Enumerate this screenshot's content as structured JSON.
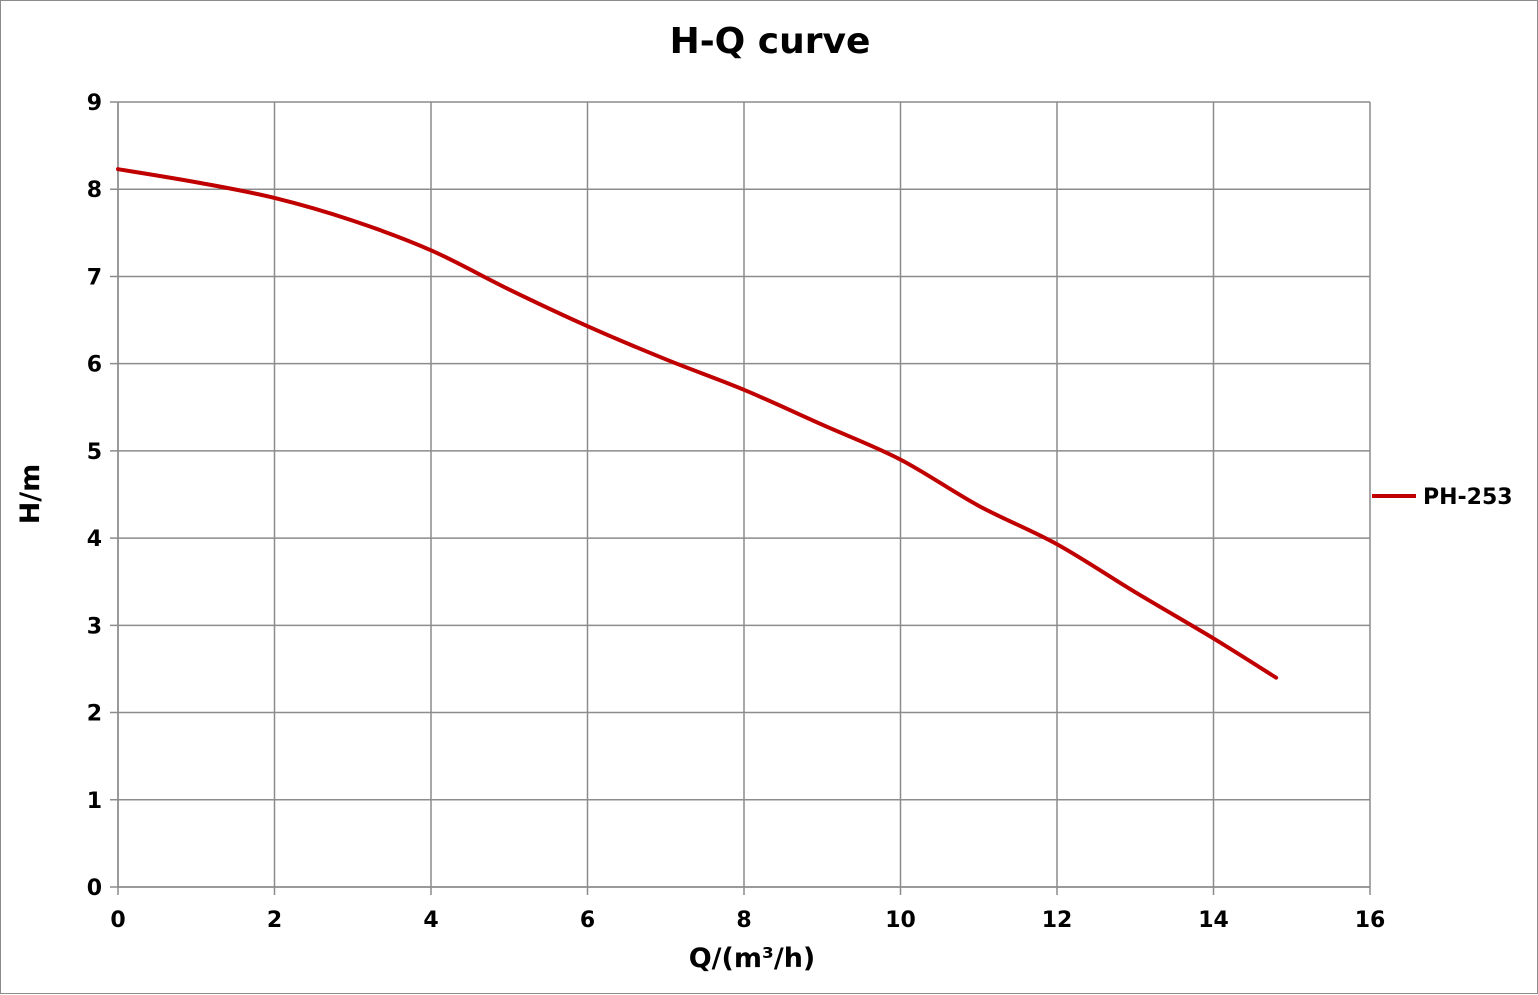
{
  "chart_data": {
    "type": "line",
    "title": "H-Q  curve",
    "xlabel": "Q/(m³/h)",
    "ylabel": "H/m",
    "xlim": [
      0,
      16
    ],
    "ylim": [
      0,
      9
    ],
    "x_ticks": [
      0,
      2,
      4,
      6,
      8,
      10,
      12,
      14,
      16
    ],
    "y_ticks": [
      0,
      1,
      2,
      3,
      4,
      5,
      6,
      7,
      8,
      9
    ],
    "grid": true,
    "legend_position": "right",
    "series": [
      {
        "name": "PH-253",
        "color": "#c00000",
        "x": [
          0,
          1,
          2,
          3,
          4,
          5,
          6,
          7,
          8,
          9,
          10,
          11,
          12,
          13,
          14,
          14.8
        ],
        "y": [
          8.23,
          8.08,
          7.9,
          7.64,
          7.3,
          6.85,
          6.43,
          6.05,
          5.7,
          5.3,
          4.9,
          4.37,
          3.93,
          3.38,
          2.85,
          2.4
        ]
      }
    ]
  }
}
